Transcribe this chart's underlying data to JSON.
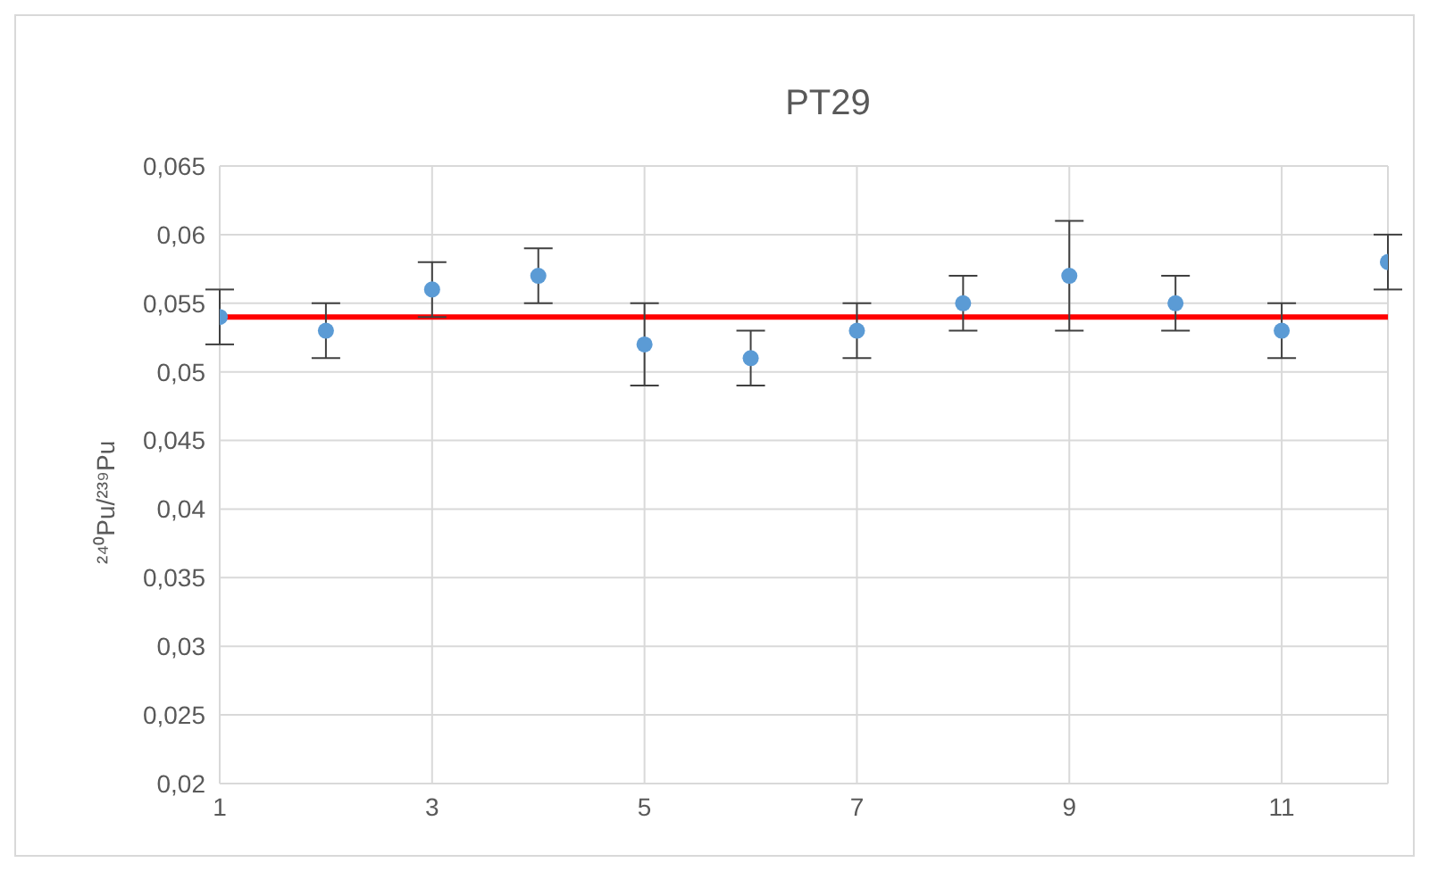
{
  "chart_data": {
    "type": "scatter",
    "title": "PT29",
    "ylabel": "²⁴⁰Pu/²³⁹Pu",
    "x": [
      1,
      2,
      3,
      4,
      5,
      6,
      7,
      8,
      9,
      10,
      11,
      12
    ],
    "series": [
      {
        "color": "#5b9bd5",
        "values": [
          0.054,
          0.053,
          0.056,
          0.057,
          0.052,
          0.051,
          0.053,
          0.055,
          0.057,
          0.055,
          0.053,
          0.058
        ],
        "errors": [
          [
            0.052,
            0.056
          ],
          [
            0.051,
            0.055
          ],
          [
            0.054,
            0.058
          ],
          [
            0.055,
            0.059
          ],
          [
            0.049,
            0.055
          ],
          [
            0.049,
            0.053
          ],
          [
            0.051,
            0.055
          ],
          [
            0.053,
            0.057
          ],
          [
            0.053,
            0.061
          ],
          [
            0.053,
            0.057
          ],
          [
            0.051,
            0.055
          ],
          [
            0.056,
            0.06
          ]
        ]
      }
    ],
    "xlim": [
      1,
      12
    ],
    "xticks": [
      1,
      3,
      5,
      7,
      9,
      11
    ],
    "ylim": [
      0.02,
      0.065
    ],
    "yticks": [
      {
        "value": 0.02,
        "label": "0,02"
      },
      {
        "value": 0.025,
        "label": "0,025"
      },
      {
        "value": 0.03,
        "label": "0,03"
      },
      {
        "value": 0.035,
        "label": "0,035"
      },
      {
        "value": 0.04,
        "label": "0,04"
      },
      {
        "value": 0.045,
        "label": "0,045"
      },
      {
        "value": 0.05,
        "label": "0,05"
      },
      {
        "value": 0.055,
        "label": "0,055"
      },
      {
        "value": 0.06,
        "label": "0,06"
      },
      {
        "value": 0.065,
        "label": "0,065"
      }
    ],
    "ref_lines": [
      {
        "axis": "y",
        "value": 0.054,
        "color": "#ff0000"
      }
    ],
    "grid": true,
    "marker": "circle"
  }
}
